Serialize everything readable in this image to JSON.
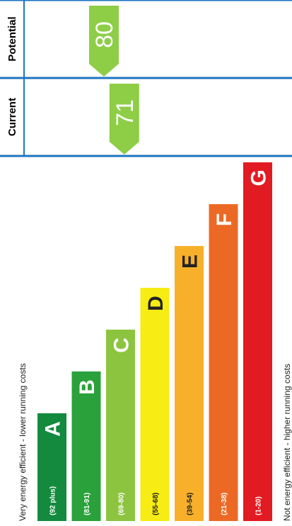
{
  "chart_data": {
    "type": "bar",
    "bands": [
      {
        "letter": "A",
        "range": "(92 plus)",
        "color": "#008054"
      },
      {
        "letter": "B",
        "range": "(81-91)",
        "color": "#19b459"
      },
      {
        "letter": "C",
        "range": "(69-80)",
        "color": "#8dce46"
      },
      {
        "letter": "D",
        "range": "(55-68)",
        "color": "#ffd500"
      },
      {
        "letter": "E",
        "range": "(39-54)",
        "color": "#fcaa65"
      },
      {
        "letter": "F",
        "range": "(21-38)",
        "color": "#ef8023"
      },
      {
        "letter": "G",
        "range": "(1-20)",
        "color": "#e9153b"
      }
    ],
    "efficient_caption": "Very energy efficient - lower running costs",
    "inefficient_caption": "Not energy efficient - higher running costs",
    "ratings": [
      {
        "label": "Potential",
        "value": 80,
        "color": "#8dce46"
      },
      {
        "label": "Current",
        "value": 71,
        "color": "#8dce46"
      }
    ]
  },
  "colors": {
    "border": "#1f75c0",
    "band_A": "#138a3e",
    "band_B": "#2aa13a",
    "band_C": "#8cc43f",
    "band_D": "#f7ec13",
    "band_E": "#f8b02a",
    "band_F": "#ec6925",
    "band_G": "#e21b23"
  }
}
